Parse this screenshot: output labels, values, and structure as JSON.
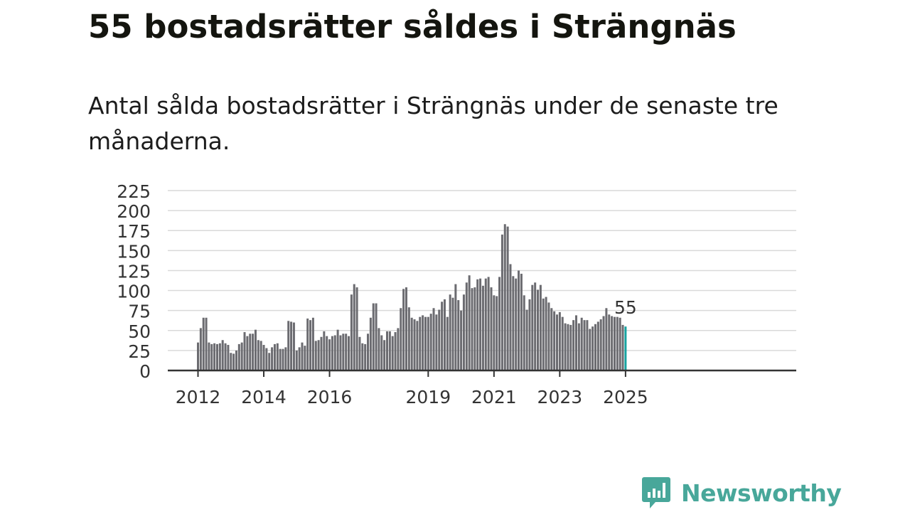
{
  "header": {
    "title": "55 bostadsrätter såldes i Strängnäs",
    "subtitle": "Antal sålda bostadsrätter i Strängnäs under de senaste tre månaderna."
  },
  "brand": {
    "name": "Newsworthy",
    "logo_icon": "bar-chart-speech-bubble-icon",
    "color": "#48a79a"
  },
  "chart_data": {
    "type": "bar",
    "title": "",
    "xlabel": "",
    "ylabel": "",
    "ylim": [
      0,
      225
    ],
    "yticks": [
      0,
      25,
      50,
      75,
      100,
      125,
      150,
      175,
      200,
      225
    ],
    "xticks": [
      "2012",
      "2014",
      "2016",
      "2019",
      "2021",
      "2023",
      "2025"
    ],
    "grid": true,
    "bar_color": "#6b6b70",
    "highlight_color": "#17a2a0",
    "highlight_label": "55",
    "series": [
      {
        "values": [
          35,
          53,
          66,
          66,
          35,
          33,
          34,
          33,
          34,
          38,
          34,
          32,
          22,
          21,
          25,
          33,
          35,
          48,
          43,
          46,
          46,
          51,
          38,
          37,
          32,
          28,
          22,
          29,
          33,
          34,
          27,
          27,
          29,
          62,
          61,
          60,
          25,
          29,
          35,
          31,
          65,
          63,
          66,
          37,
          38,
          42,
          49,
          43,
          39,
          43,
          44,
          51,
          44,
          46,
          46,
          43,
          95,
          108,
          104,
          42,
          34,
          33,
          46,
          66,
          84,
          84,
          53,
          44,
          38,
          49,
          49,
          43,
          48,
          53,
          78,
          102,
          104,
          79,
          66,
          64,
          62,
          67,
          69,
          67,
          67,
          71,
          78,
          70,
          76,
          86,
          89,
          67,
          95,
          91,
          108,
          88,
          75,
          95,
          110,
          119,
          103,
          104,
          114,
          115,
          106,
          115,
          117,
          104,
          94,
          93,
          117,
          170,
          183,
          180,
          133,
          118,
          115,
          125,
          121,
          94,
          76,
          89,
          107,
          110,
          101,
          107,
          90,
          92,
          85,
          78,
          74,
          70,
          73,
          67,
          59,
          58,
          57,
          63,
          69,
          59,
          66,
          63,
          63,
          52,
          55,
          58,
          61,
          64,
          68,
          78,
          70,
          68,
          67,
          67,
          66,
          57,
          55
        ]
      }
    ]
  }
}
